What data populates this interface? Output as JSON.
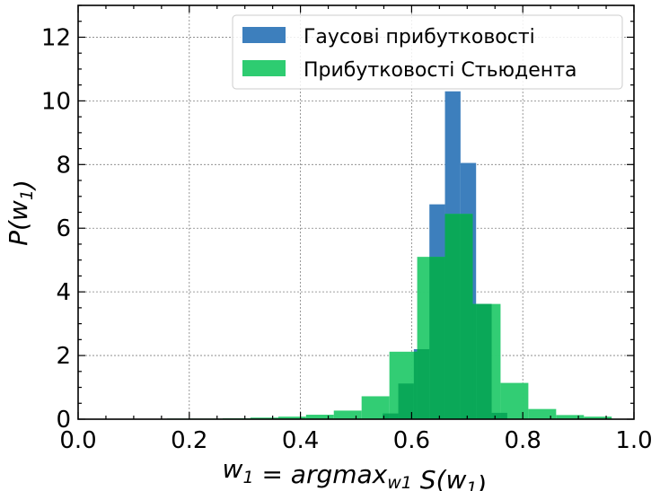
{
  "chart_data": {
    "type": "bar",
    "title": "",
    "xlabel": "w_1 = argmax_{w_1} S(w_1)",
    "ylabel": "P(w_1)",
    "xlim": [
      0.0,
      1.0
    ],
    "ylim": [
      0,
      13
    ],
    "xticks": [
      "0.0",
      "0.2",
      "0.4",
      "0.6",
      "0.8",
      "1.0"
    ],
    "yticks": [
      "0",
      "2",
      "4",
      "6",
      "8",
      "10",
      "12"
    ],
    "grid": true,
    "legend_position": "top-right",
    "series": [
      {
        "name": "Гаусові прибутковості",
        "color": "#3d7fbd",
        "bin_width": 0.028,
        "bins": [
          {
            "x0": 0.548,
            "value": 0.18
          },
          {
            "x0": 0.576,
            "value": 1.12
          },
          {
            "x0": 0.604,
            "value": 2.2
          },
          {
            "x0": 0.632,
            "value": 6.75
          },
          {
            "x0": 0.66,
            "value": 10.3
          },
          {
            "x0": 0.688,
            "value": 8.05
          },
          {
            "x0": 0.716,
            "value": 3.62
          },
          {
            "x0": 0.744,
            "value": 0.2
          }
        ]
      },
      {
        "name": "Прибутковості Стьюдента",
        "color": "#2ecc71",
        "bin_width": 0.05,
        "bins": [
          {
            "x0": 0.16,
            "value": 0.02
          },
          {
            "x0": 0.21,
            "value": 0.02
          },
          {
            "x0": 0.26,
            "value": 0.03
          },
          {
            "x0": 0.31,
            "value": 0.05
          },
          {
            "x0": 0.36,
            "value": 0.08
          },
          {
            "x0": 0.41,
            "value": 0.14
          },
          {
            "x0": 0.46,
            "value": 0.27
          },
          {
            "x0": 0.51,
            "value": 0.72
          },
          {
            "x0": 0.56,
            "value": 2.12
          },
          {
            "x0": 0.61,
            "value": 5.1
          },
          {
            "x0": 0.66,
            "value": 6.45
          },
          {
            "x0": 0.71,
            "value": 3.62
          },
          {
            "x0": 0.76,
            "value": 1.14
          },
          {
            "x0": 0.81,
            "value": 0.32
          },
          {
            "x0": 0.86,
            "value": 0.13
          },
          {
            "x0": 0.91,
            "value": 0.08
          }
        ]
      }
    ],
    "overlap_color": "#0aa858"
  }
}
